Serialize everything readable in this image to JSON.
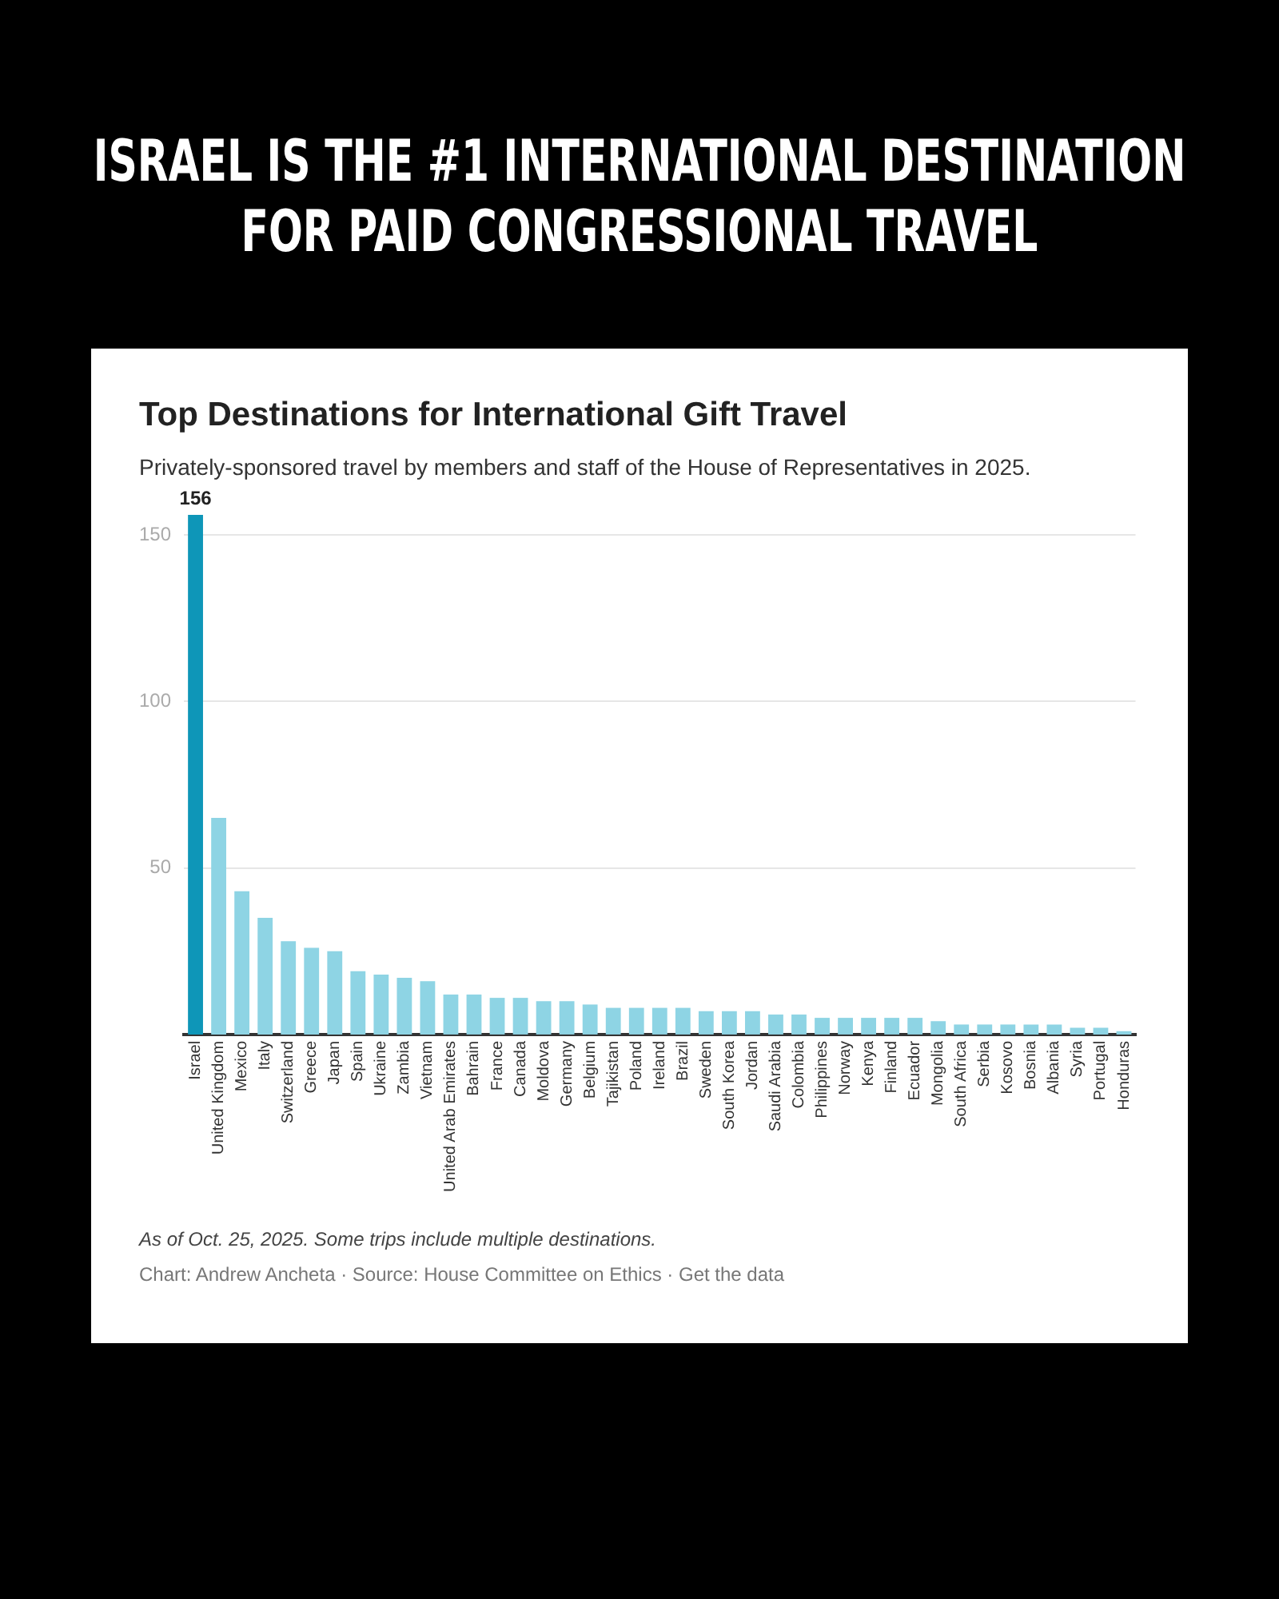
{
  "chart_data": {
    "type": "bar",
    "title": "Top Destinations for International Gift Travel",
    "subtitle": "Privately-sponsored travel by members and staff of the House of Representatives in 2025.",
    "annotations": [
      "ISRAEL IS THE #1 INTERNATIONAL DESTINATION FOR PAID CONGRESSIONAL TRAVEL",
      "As of Oct. 25, 2025. Some trips include multiple destinations.",
      "Chart: Andrew Ancheta · Source: House Committee on Ethics · Get the data"
    ],
    "categories": [
      "Israel",
      "United Kingdom",
      "Mexico",
      "Italy",
      "Switzerland",
      "Greece",
      "Japan",
      "Spain",
      "Ukraine",
      "Zambia",
      "Vietnam",
      "United Arab Emirates",
      "Bahrain",
      "France",
      "Canada",
      "Moldova",
      "Germany",
      "Belgium",
      "Tajikistan",
      "Poland",
      "Ireland",
      "Brazil",
      "Sweden",
      "South Korea",
      "Jordan",
      "Saudi Arabia",
      "Colombia",
      "Philippines",
      "Norway",
      "Kenya",
      "Finland",
      "Ecuador",
      "Mongolia",
      "South Africa",
      "Serbia",
      "Kosovo",
      "Bosnia",
      "Albania",
      "Syria",
      "Portugal",
      "Honduras"
    ],
    "values": [
      156,
      65,
      43,
      35,
      28,
      26,
      25,
      19,
      18,
      17,
      16,
      12,
      12,
      11,
      11,
      10,
      10,
      9,
      8,
      8,
      8,
      8,
      7,
      7,
      7,
      6,
      6,
      5,
      5,
      5,
      5,
      5,
      4,
      3,
      3,
      3,
      3,
      3,
      2,
      2,
      1
    ],
    "value_labels": [
      "156",
      null,
      null,
      null,
      null,
      null,
      null,
      null,
      null,
      null,
      null,
      null,
      null,
      null,
      null,
      null,
      null,
      null,
      null,
      null,
      null,
      null,
      null,
      null,
      null,
      null,
      null,
      null,
      null,
      null,
      null,
      null,
      null,
      null,
      null,
      null,
      null,
      null,
      null,
      null,
      null
    ],
    "colors": [
      "#0e96b8",
      "#8ed4e4",
      "#8ed4e4",
      "#8ed4e4",
      "#8ed4e4",
      "#8ed4e4",
      "#8ed4e4",
      "#8ed4e4",
      "#8ed4e4",
      "#8ed4e4",
      "#8ed4e4",
      "#8ed4e4",
      "#8ed4e4",
      "#8ed4e4",
      "#8ed4e4",
      "#8ed4e4",
      "#8ed4e4",
      "#8ed4e4",
      "#8ed4e4",
      "#8ed4e4",
      "#8ed4e4",
      "#8ed4e4",
      "#8ed4e4",
      "#8ed4e4",
      "#8ed4e4",
      "#8ed4e4",
      "#8ed4e4",
      "#8ed4e4",
      "#8ed4e4",
      "#8ed4e4",
      "#8ed4e4",
      "#8ed4e4",
      "#8ed4e4",
      "#8ed4e4",
      "#8ed4e4",
      "#8ed4e4",
      "#8ed4e4",
      "#8ed4e4",
      "#8ed4e4",
      "#8ed4e4",
      "#8ed4e4"
    ],
    "ylim": [
      0,
      156
    ],
    "yticks": [
      50,
      100,
      150
    ],
    "grid": "y",
    "legend": false
  }
}
